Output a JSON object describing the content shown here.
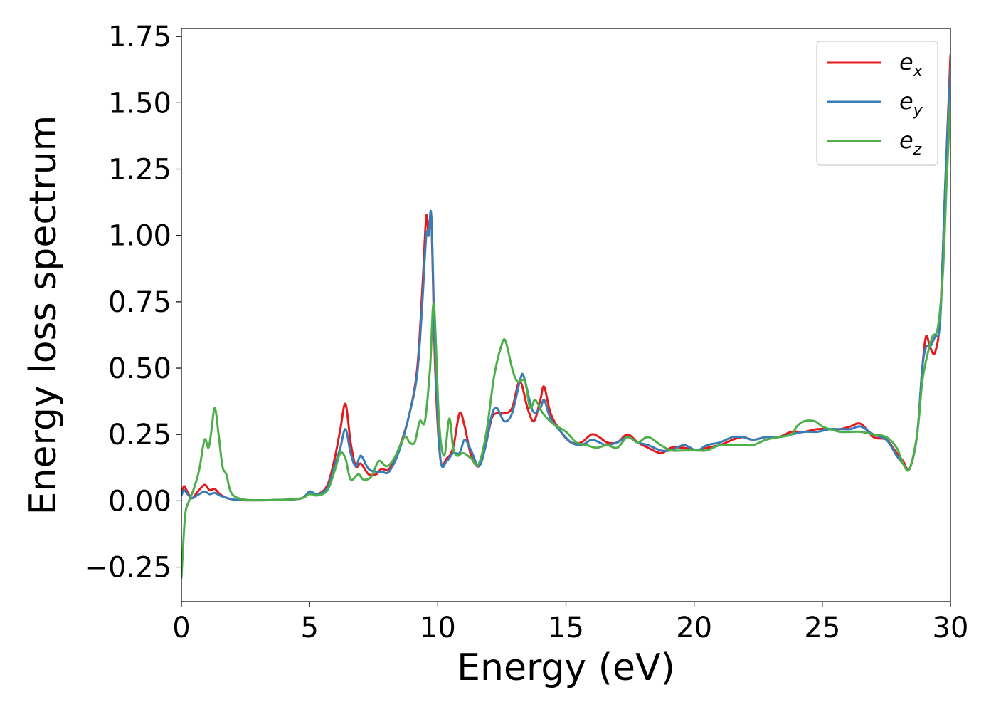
{
  "chart_data": {
    "type": "line",
    "xlabel": "Energy (eV)",
    "ylabel": "Energy loss spectrum",
    "xlim": [
      0,
      30
    ],
    "ylim": [
      -0.38,
      1.78
    ],
    "xticks": [
      0,
      5,
      10,
      15,
      20,
      25,
      30
    ],
    "yticks": [
      -0.25,
      0.0,
      0.25,
      0.5,
      0.75,
      1.0,
      1.25,
      1.5,
      1.75
    ],
    "xtick_labels": [
      "0",
      "5",
      "10",
      "15",
      "20",
      "25",
      "30"
    ],
    "ytick_labels": [
      "−0.25",
      "0.00",
      "0.25",
      "0.50",
      "0.75",
      "1.00",
      "1.25",
      "1.50",
      "1.75"
    ],
    "grid": false,
    "legend_position": "top-right",
    "series": [
      {
        "name": "e_x",
        "legend_base": "e",
        "legend_sub": "x",
        "color": "#e41a1c",
        "x": [
          0,
          0.1,
          0.2,
          0.4,
          0.6,
          0.9,
          1.1,
          1.3,
          1.5,
          1.8,
          2.2,
          3,
          4,
          4.7,
          5.0,
          5.3,
          5.7,
          6.0,
          6.2,
          6.4,
          6.6,
          6.8,
          7.0,
          7.3,
          7.6,
          7.8,
          8.1,
          8.5,
          8.9,
          9.2,
          9.4,
          9.55,
          9.65,
          9.75,
          9.9,
          10.1,
          10.35,
          10.6,
          10.85,
          11.05,
          11.3,
          11.6,
          11.85,
          12.1,
          12.3,
          12.6,
          12.9,
          13.2,
          13.5,
          13.75,
          14.0,
          14.15,
          14.4,
          14.8,
          15.2,
          15.6,
          16.0,
          16.3,
          16.6,
          17.0,
          17.4,
          17.8,
          18.2,
          18.7,
          19.1,
          19.6,
          20.1,
          20.5,
          21.0,
          21.5,
          21.9,
          22.3,
          22.8,
          23.3,
          23.8,
          24.3,
          24.8,
          25.3,
          25.7,
          26.1,
          26.5,
          27.0,
          27.5,
          27.9,
          28.15,
          28.4,
          28.7,
          28.9,
          29.05,
          29.2,
          29.4,
          29.6,
          29.8,
          30.0
        ],
        "y": [
          0.03,
          0.055,
          0.04,
          0.01,
          0.03,
          0.06,
          0.04,
          0.045,
          0.025,
          0.01,
          0.003,
          0.002,
          0.004,
          0.01,
          0.035,
          0.025,
          0.06,
          0.17,
          0.27,
          0.365,
          0.22,
          0.13,
          0.14,
          0.1,
          0.1,
          0.12,
          0.12,
          0.2,
          0.33,
          0.5,
          0.8,
          1.07,
          1.0,
          1.06,
          0.5,
          0.16,
          0.16,
          0.2,
          0.33,
          0.28,
          0.17,
          0.13,
          0.2,
          0.31,
          0.33,
          0.33,
          0.35,
          0.45,
          0.35,
          0.3,
          0.38,
          0.43,
          0.33,
          0.26,
          0.22,
          0.22,
          0.25,
          0.24,
          0.22,
          0.22,
          0.25,
          0.22,
          0.2,
          0.18,
          0.2,
          0.2,
          0.19,
          0.2,
          0.21,
          0.23,
          0.24,
          0.23,
          0.24,
          0.24,
          0.26,
          0.26,
          0.27,
          0.27,
          0.27,
          0.28,
          0.29,
          0.24,
          0.23,
          0.18,
          0.15,
          0.12,
          0.25,
          0.5,
          0.62,
          0.58,
          0.56,
          0.7,
          1.2,
          1.68
        ]
      },
      {
        "name": "e_y",
        "legend_base": "e",
        "legend_sub": "y",
        "color": "#377eb8",
        "x": [
          0,
          0.1,
          0.2,
          0.4,
          0.6,
          0.9,
          1.1,
          1.3,
          1.5,
          1.8,
          2.2,
          3,
          4,
          4.7,
          5.0,
          5.3,
          5.7,
          6.0,
          6.2,
          6.4,
          6.6,
          6.8,
          7.0,
          7.3,
          7.6,
          7.8,
          8.1,
          8.5,
          8.9,
          9.2,
          9.4,
          9.55,
          9.65,
          9.75,
          9.9,
          10.1,
          10.35,
          10.6,
          10.85,
          11.05,
          11.3,
          11.6,
          11.85,
          12.1,
          12.3,
          12.6,
          12.9,
          13.2,
          13.35,
          13.7,
          14.0,
          14.15,
          14.4,
          14.8,
          15.2,
          15.6,
          16.0,
          16.3,
          16.6,
          17.0,
          17.4,
          17.8,
          18.2,
          18.7,
          19.1,
          19.6,
          20.1,
          20.5,
          21.0,
          21.5,
          21.9,
          22.3,
          22.8,
          23.3,
          23.8,
          24.3,
          24.8,
          25.3,
          25.7,
          26.1,
          26.5,
          27.0,
          27.5,
          27.9,
          28.15,
          28.4,
          28.7,
          28.9,
          29.05,
          29.2,
          29.4,
          29.6,
          29.8,
          30.0
        ],
        "y": [
          0.02,
          0.04,
          0.03,
          0.01,
          0.02,
          0.035,
          0.025,
          0.03,
          0.02,
          0.01,
          0.003,
          0.002,
          0.004,
          0.01,
          0.035,
          0.025,
          0.05,
          0.14,
          0.2,
          0.27,
          0.18,
          0.13,
          0.17,
          0.12,
          0.11,
          0.11,
          0.11,
          0.19,
          0.33,
          0.48,
          0.75,
          1.0,
          1.0,
          1.07,
          0.55,
          0.16,
          0.15,
          0.18,
          0.18,
          0.23,
          0.19,
          0.13,
          0.2,
          0.32,
          0.35,
          0.3,
          0.33,
          0.45,
          0.47,
          0.34,
          0.35,
          0.38,
          0.31,
          0.26,
          0.22,
          0.21,
          0.23,
          0.22,
          0.21,
          0.22,
          0.24,
          0.22,
          0.21,
          0.19,
          0.19,
          0.21,
          0.19,
          0.21,
          0.22,
          0.24,
          0.24,
          0.23,
          0.24,
          0.24,
          0.25,
          0.26,
          0.26,
          0.27,
          0.27,
          0.27,
          0.28,
          0.25,
          0.23,
          0.17,
          0.14,
          0.12,
          0.25,
          0.5,
          0.58,
          0.58,
          0.62,
          0.68,
          1.2,
          1.63
        ]
      },
      {
        "name": "e_z",
        "legend_base": "e",
        "legend_sub": "z",
        "color": "#4daf4a",
        "x": [
          0,
          0.05,
          0.15,
          0.3,
          0.5,
          0.7,
          0.9,
          1.05,
          1.15,
          1.3,
          1.45,
          1.6,
          1.75,
          1.9,
          2.1,
          2.5,
          3,
          4,
          4.7,
          5.0,
          5.3,
          5.7,
          6.0,
          6.2,
          6.4,
          6.6,
          6.9,
          7.1,
          7.4,
          7.7,
          8.0,
          8.3,
          8.7,
          8.9,
          9.1,
          9.3,
          9.5,
          9.7,
          9.85,
          10.05,
          10.25,
          10.45,
          10.6,
          10.75,
          11.0,
          11.3,
          11.6,
          11.9,
          12.2,
          12.5,
          12.65,
          12.9,
          13.1,
          13.4,
          13.6,
          13.8,
          14.1,
          14.5,
          15.0,
          15.4,
          15.8,
          16.2,
          16.6,
          17.0,
          17.4,
          17.8,
          18.2,
          18.7,
          19.1,
          19.6,
          20.1,
          20.5,
          21.0,
          21.5,
          21.9,
          22.3,
          22.8,
          23.3,
          23.8,
          24.0,
          24.3,
          24.7,
          25.0,
          25.3,
          25.7,
          26.1,
          26.5,
          27.0,
          27.5,
          27.9,
          28.15,
          28.4,
          28.7,
          28.9,
          29.1,
          29.3,
          29.5,
          29.7,
          29.85,
          30.0
        ],
        "y": [
          -0.29,
          -0.2,
          -0.05,
          0.0,
          0.05,
          0.12,
          0.23,
          0.2,
          0.25,
          0.35,
          0.25,
          0.13,
          0.1,
          0.04,
          0.015,
          0.004,
          0.002,
          0.004,
          0.01,
          0.025,
          0.02,
          0.04,
          0.12,
          0.18,
          0.16,
          0.08,
          0.1,
          0.08,
          0.09,
          0.15,
          0.13,
          0.16,
          0.24,
          0.22,
          0.22,
          0.3,
          0.3,
          0.5,
          0.74,
          0.3,
          0.17,
          0.31,
          0.2,
          0.17,
          0.18,
          0.16,
          0.14,
          0.26,
          0.47,
          0.59,
          0.6,
          0.5,
          0.45,
          0.45,
          0.35,
          0.38,
          0.33,
          0.29,
          0.26,
          0.22,
          0.21,
          0.2,
          0.21,
          0.2,
          0.24,
          0.22,
          0.24,
          0.21,
          0.19,
          0.19,
          0.19,
          0.19,
          0.21,
          0.21,
          0.21,
          0.21,
          0.23,
          0.24,
          0.25,
          0.28,
          0.3,
          0.3,
          0.28,
          0.27,
          0.26,
          0.26,
          0.26,
          0.25,
          0.24,
          0.2,
          0.14,
          0.12,
          0.25,
          0.45,
          0.55,
          0.62,
          0.65,
          0.85,
          1.2,
          1.51
        ]
      }
    ]
  }
}
